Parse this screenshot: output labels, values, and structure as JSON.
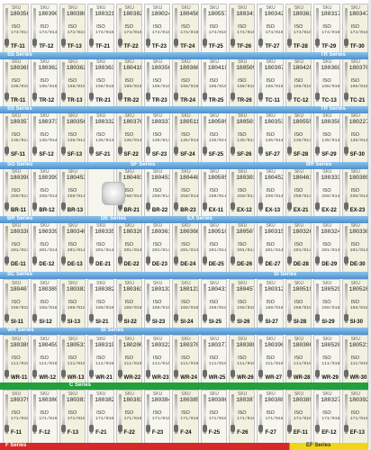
{
  "bands": [
    {
      "cards": [
        {
          "sku": "SKU",
          "code": "180356",
          "iso": "ISO",
          "isonum": "173/014",
          "tag": "TF-11"
        },
        {
          "sku": "SKU",
          "code": "180390",
          "iso": "ISO",
          "isonum": "173/014",
          "tag": "TF-12"
        },
        {
          "sku": "SKU",
          "code": "180380",
          "iso": "ISO",
          "isonum": "172/023",
          "tag": "TF-13"
        },
        {
          "sku": "SKU",
          "code": "180321",
          "iso": "ISO",
          "isonum": "174/016",
          "tag": "TF-21"
        },
        {
          "sku": "SKU",
          "code": "180382",
          "iso": "ISO",
          "isonum": "174/016",
          "tag": "TF-22"
        },
        {
          "sku": "SKU",
          "code": "180024",
          "iso": "ISO",
          "isonum": "174/016",
          "tag": "TF-23"
        },
        {
          "sku": "SKU",
          "code": "180456",
          "iso": "ISO",
          "isonum": "174/016",
          "tag": "TF-24"
        },
        {
          "sku": "SKU",
          "code": "180557",
          "iso": "ISO",
          "isonum": "174/016",
          "tag": "TF-25"
        },
        {
          "sku": "SKU",
          "code": "180341",
          "iso": "ISO",
          "isonum": "174/016",
          "tag": "TF-26"
        },
        {
          "sku": "SKU",
          "code": "180342",
          "iso": "ISO",
          "isonum": "174/016",
          "tag": "TF-27"
        },
        {
          "sku": "SKU",
          "code": "180363",
          "iso": "ISO",
          "isonum": "174/016",
          "tag": "TF-28"
        },
        {
          "sku": "SKU",
          "code": "180317",
          "iso": "ISO",
          "isonum": "174/016",
          "tag": "TF-29"
        },
        {
          "sku": "SKU",
          "code": "180347",
          "iso": "ISO",
          "isonum": "174/016",
          "tag": "TF-30"
        }
      ]
    },
    {
      "cards": [
        {
          "sku": "SKU",
          "code": "180365",
          "iso": "ISO",
          "isonum": "198/016",
          "tag": "TR-11"
        },
        {
          "sku": "SKU",
          "code": "180362",
          "iso": "ISO",
          "isonum": "198/016",
          "tag": "TR-12"
        },
        {
          "sku": "SKU",
          "code": "180362",
          "iso": "ISO",
          "isonum": "198/016",
          "tag": "TR-13"
        },
        {
          "sku": "SKU",
          "code": "180363",
          "iso": "ISO",
          "isonum": "198/016",
          "tag": "TR-21"
        },
        {
          "sku": "SKU",
          "code": "180418",
          "iso": "ISO",
          "isonum": "198/016",
          "tag": "TR-22"
        },
        {
          "sku": "SKU",
          "code": "180356",
          "iso": "ISO",
          "isonum": "198/016",
          "tag": "TR-23"
        },
        {
          "sku": "SKU",
          "code": "180360",
          "iso": "ISO",
          "isonum": "198/016",
          "tag": "TR-24"
        },
        {
          "sku": "SKU",
          "code": "180419",
          "iso": "ISO",
          "isonum": "198/016",
          "tag": "TR-25"
        },
        {
          "sku": "SKU",
          "code": "180509",
          "iso": "ISO",
          "isonum": "198/016",
          "tag": "TR-26"
        },
        {
          "sku": "SKU",
          "code": "180387",
          "iso": "ISO",
          "isonum": "198/016",
          "tag": "TC-11"
        },
        {
          "sku": "SKU",
          "code": "180428",
          "iso": "ISO",
          "isonum": "198/016",
          "tag": "TC-12"
        },
        {
          "sku": "SKU",
          "code": "180369",
          "iso": "ISO",
          "isonum": "198/016",
          "tag": "TC-13"
        },
        {
          "sku": "SKU",
          "code": "180370",
          "iso": "ISO",
          "isonum": "198/016",
          "tag": "TC-21"
        }
      ]
    },
    {
      "cards": [
        {
          "sku": "SKU",
          "code": "180357",
          "iso": "ISO",
          "isonum": "135/014",
          "tag": "SF-11"
        },
        {
          "sku": "SKU",
          "code": "180373",
          "iso": "ISO",
          "isonum": "135/014",
          "tag": "SF-12"
        },
        {
          "sku": "SKU",
          "code": "180356",
          "iso": "ISO",
          "isonum": "135/014",
          "tag": "SF-13"
        },
        {
          "sku": "SKU",
          "code": "180332",
          "iso": "ISO",
          "isonum": "135/014",
          "tag": "SF-21"
        },
        {
          "sku": "SKU",
          "code": "180376",
          "iso": "ISO",
          "isonum": "135/014",
          "tag": "SF-22"
        },
        {
          "sku": "SKU",
          "code": "180337",
          "iso": "ISO",
          "isonum": "135/014",
          "tag": "SF-23"
        },
        {
          "sku": "SKU",
          "code": "180511",
          "iso": "ISO",
          "isonum": "135/014",
          "tag": "SF-24"
        },
        {
          "sku": "SKU",
          "code": "180509",
          "iso": "ISO",
          "isonum": "135/014",
          "tag": "SF-25"
        },
        {
          "sku": "SKU",
          "code": "180501",
          "iso": "ISO",
          "isonum": "135/014",
          "tag": "SF-26"
        },
        {
          "sku": "SKU",
          "code": "180353",
          "iso": "ISO",
          "isonum": "135/014",
          "tag": "SF-27"
        },
        {
          "sku": "SKU",
          "code": "180555",
          "iso": "ISO",
          "isonum": "135/014",
          "tag": "SF-28"
        },
        {
          "sku": "SKU",
          "code": "180358",
          "iso": "ISO",
          "isonum": "135/014",
          "tag": "SF-29"
        },
        {
          "sku": "SKU",
          "code": "180227",
          "iso": "ISO",
          "isonum": "135/014",
          "tag": "SF-30"
        }
      ]
    },
    {
      "cards": [
        {
          "sku": "SKU",
          "code": "180398",
          "iso": "ISO",
          "isonum": "250/014",
          "tag": "BR-11"
        },
        {
          "sku": "SKU",
          "code": "180399",
          "iso": "ISO",
          "isonum": "250/014",
          "tag": "BR-12"
        },
        {
          "sku": "SKU",
          "code": "180453",
          "iso": "ISO",
          "isonum": "250/014",
          "tag": "BR-13"
        },
        {
          "sku": "",
          "code": "",
          "iso": "",
          "isonum": "",
          "tag": ""
        },
        {
          "sku": "SKU",
          "code": "180401",
          "iso": "ISO",
          "isonum": "250/014",
          "tag": "BR-21"
        },
        {
          "sku": "SKU",
          "code": "180453",
          "iso": "ISO",
          "isonum": "250/014",
          "tag": "BR-22"
        },
        {
          "sku": "SKU",
          "code": "180448",
          "iso": "ISO",
          "isonum": "250/014",
          "tag": "BR-23"
        },
        {
          "sku": "SKU",
          "code": "180505",
          "iso": "ISO",
          "isonum": "250/014",
          "tag": "EX-11"
        },
        {
          "sku": "SKU",
          "code": "180303",
          "iso": "ISO",
          "isonum": "250/014",
          "tag": "EX-12"
        },
        {
          "sku": "SKU",
          "code": "180452",
          "iso": "ISO",
          "isonum": "250/014",
          "tag": "EX-13"
        },
        {
          "sku": "SKU",
          "code": "180461",
          "iso": "ISO",
          "isonum": "250/014",
          "tag": "EX-21"
        },
        {
          "sku": "SKU",
          "code": "180333",
          "iso": "ISO",
          "isonum": "250/014",
          "tag": "EX-22"
        },
        {
          "sku": "SKU",
          "code": "180389",
          "iso": "ISO",
          "isonum": "250/014",
          "tag": "EX-23"
        }
      ]
    },
    {
      "cards": [
        {
          "sku": "SKU",
          "code": "180338",
          "iso": "ISO",
          "isonum": "201/014",
          "tag": "DE-11"
        },
        {
          "sku": "SKU",
          "code": "180339",
          "iso": "ISO",
          "isonum": "201/014",
          "tag": "DE-12"
        },
        {
          "sku": "SKU",
          "code": "180340",
          "iso": "ISO",
          "isonum": "201/014",
          "tag": "DE-13"
        },
        {
          "sku": "SKU",
          "code": "180335",
          "iso": "ISO",
          "isonum": "201/014",
          "tag": "DE-21"
        },
        {
          "sku": "SKU",
          "code": "180326",
          "iso": "ISO",
          "isonum": "201/014",
          "tag": "DE-22"
        },
        {
          "sku": "SKU",
          "code": "180361",
          "iso": "ISO",
          "isonum": "201/014",
          "tag": "DE-23"
        },
        {
          "sku": "SKU",
          "code": "180366",
          "iso": "ISO",
          "isonum": "201/014",
          "tag": "DE-24"
        },
        {
          "sku": "SKU",
          "code": "180510",
          "iso": "ISO",
          "isonum": "201/014",
          "tag": "DE-25"
        },
        {
          "sku": "SKU",
          "code": "180507",
          "iso": "ISO",
          "isonum": "201/014",
          "tag": "DE-26"
        },
        {
          "sku": "SKU",
          "code": "180315",
          "iso": "ISO",
          "isonum": "201/014",
          "tag": "DE-27"
        },
        {
          "sku": "SKU",
          "code": "180326",
          "iso": "ISO",
          "isonum": "201/014",
          "tag": "DE-28"
        },
        {
          "sku": "SKU",
          "code": "180324",
          "iso": "ISO",
          "isonum": "201/014",
          "tag": "DE-29"
        },
        {
          "sku": "SKU",
          "code": "180330",
          "iso": "ISO",
          "isonum": "201/014",
          "tag": "DE-30"
        }
      ]
    },
    {
      "cards": [
        {
          "sku": "SKU",
          "code": "180407",
          "iso": "ISO",
          "isonum": "168/018",
          "tag": "SI-11"
        },
        {
          "sku": "SKU",
          "code": "180385",
          "iso": "ISO",
          "isonum": "168/018",
          "tag": "SI-12"
        },
        {
          "sku": "SKU",
          "code": "180383",
          "iso": "ISO",
          "isonum": "168/018",
          "tag": "SI-13"
        },
        {
          "sku": "SKU",
          "code": "180382",
          "iso": "ISO",
          "isonum": "168/018",
          "tag": "SI-21"
        },
        {
          "sku": "SKU",
          "code": "180363",
          "iso": "ISO",
          "isonum": "168/018",
          "tag": "SI-22"
        },
        {
          "sku": "SKU",
          "code": "180133",
          "iso": "ISO",
          "isonum": "168/018",
          "tag": "SI-23"
        },
        {
          "sku": "SKU",
          "code": "180123",
          "iso": "ISO",
          "isonum": "168/018",
          "tag": "SI-24"
        },
        {
          "sku": "SKU",
          "code": "180431",
          "iso": "ISO",
          "isonum": "168/018",
          "tag": "SI-25"
        },
        {
          "sku": "SKU",
          "code": "180457",
          "iso": "ISO",
          "isonum": "168/018",
          "tag": "SI-26"
        },
        {
          "sku": "SKU",
          "code": "180312",
          "iso": "ISO",
          "isonum": "168/018",
          "tag": "SI-27"
        },
        {
          "sku": "SKU",
          "code": "180519",
          "iso": "ISO",
          "isonum": "168/018",
          "tag": "SI-28"
        },
        {
          "sku": "SKU",
          "code": "180529",
          "iso": "ISO",
          "isonum": "168/018",
          "tag": "SI-29"
        },
        {
          "sku": "SKU",
          "code": "180528",
          "iso": "ISO",
          "isonum": "168/018",
          "tag": "SI-30"
        }
      ]
    },
    {
      "cards": [
        {
          "sku": "SKU",
          "code": "180389",
          "iso": "ISO",
          "isonum": "111/016",
          "tag": "WR-11"
        },
        {
          "sku": "SKU",
          "code": "180459",
          "iso": "ISO",
          "isonum": "111/016",
          "tag": "WR-12"
        },
        {
          "sku": "SKU",
          "code": "180531",
          "iso": "ISO",
          "isonum": "111/016",
          "tag": "WR-13"
        },
        {
          "sku": "SKU",
          "code": "180319",
          "iso": "ISO",
          "isonum": "111/016",
          "tag": "WR-21"
        },
        {
          "sku": "SKU",
          "code": "180200",
          "iso": "ISO",
          "isonum": "111/016",
          "tag": "WR-22"
        },
        {
          "sku": "SKU",
          "code": "180322",
          "iso": "ISO",
          "isonum": "111/016",
          "tag": "WR-23"
        },
        {
          "sku": "SKU",
          "code": "180376",
          "iso": "ISO",
          "isonum": "111/016",
          "tag": "WR-24"
        },
        {
          "sku": "SKU",
          "code": "180377",
          "iso": "ISO",
          "isonum": "111/016",
          "tag": "WR-25"
        },
        {
          "sku": "SKU",
          "code": "180388",
          "iso": "ISO",
          "isonum": "111/016",
          "tag": "WR-26"
        },
        {
          "sku": "SKU",
          "code": "180396",
          "iso": "ISO",
          "isonum": "111/016",
          "tag": "WR-27"
        },
        {
          "sku": "SKU",
          "code": "180306",
          "iso": "ISO",
          "isonum": "111/016",
          "tag": "WR-28"
        },
        {
          "sku": "SKU",
          "code": "180520",
          "iso": "ISO",
          "isonum": "111/016",
          "tag": "WR-29"
        },
        {
          "sku": "SKU",
          "code": "180521",
          "iso": "ISO",
          "isonum": "111/016",
          "tag": "WR-30"
        }
      ]
    },
    {
      "cards": [
        {
          "sku": "SKU",
          "code": "180379",
          "iso": "ISO",
          "isonum": "171/016",
          "tag": "F-11"
        },
        {
          "sku": "SKU",
          "code": "180380",
          "iso": "ISO",
          "isonum": "171/016",
          "tag": "F-12"
        },
        {
          "sku": "SKU",
          "code": "180381",
          "iso": "ISO",
          "isonum": "171/016",
          "tag": "F-13"
        },
        {
          "sku": "SKU",
          "code": "180382",
          "iso": "ISO",
          "isonum": "171/016",
          "tag": "F-21"
        },
        {
          "sku": "SKU",
          "code": "180383",
          "iso": "ISO",
          "isonum": "171/016",
          "tag": "F-22"
        },
        {
          "sku": "SKU",
          "code": "180384",
          "iso": "ISO",
          "isonum": "171/016",
          "tag": "F-23"
        },
        {
          "sku": "SKU",
          "code": "180385",
          "iso": "ISO",
          "isonum": "171/016",
          "tag": "F-24"
        },
        {
          "sku": "SKU",
          "code": "180386",
          "iso": "ISO",
          "isonum": "171/016",
          "tag": "F-25"
        },
        {
          "sku": "SKU",
          "code": "180387",
          "iso": "ISO",
          "isonum": "171/016",
          "tag": "F-26"
        },
        {
          "sku": "SKU",
          "code": "180388",
          "iso": "ISO",
          "isonum": "171/016",
          "tag": "F-27"
        },
        {
          "sku": "SKU",
          "code": "180389",
          "iso": "ISO",
          "isonum": "171/016",
          "tag": "EF-11"
        },
        {
          "sku": "SKU",
          "code": "180327",
          "iso": "ISO",
          "isonum": "171/016",
          "tag": "EF-12"
        },
        {
          "sku": "SKU",
          "code": "180392",
          "iso": "ISO",
          "isonum": "171/016",
          "tag": "EF-13"
        }
      ]
    }
  ],
  "series_bars": [
    {
      "kind": "blue",
      "labels": [
        {
          "text": "SS Series"
        },
        {
          "text": "TR Series"
        }
      ]
    },
    {
      "kind": "blue",
      "labels": [
        {
          "text": "SS Series"
        },
        {
          "text": "TR Series"
        }
      ]
    },
    {
      "kind": "blue",
      "labels": [
        {
          "text": "SO Series"
        },
        {
          "text": "SF Series"
        },
        {
          "text": "BR Series"
        }
      ]
    },
    {
      "kind": "blue",
      "labels": [
        {
          "text": "BR Series"
        },
        {
          "text": "DE Series"
        },
        {
          "text": "EX Series"
        }
      ]
    },
    {
      "kind": "blue",
      "labels": [
        {
          "text": "SC Series"
        },
        {
          "text": "SI Series"
        }
      ]
    },
    {
      "kind": "blue",
      "labels": [
        {
          "text": "WR Series"
        },
        {
          "text": "SI Series"
        }
      ]
    },
    {
      "kind": "green",
      "labels": [
        {
          "text": "C Series"
        }
      ]
    },
    {
      "kind": "footer",
      "labels": [
        {
          "text": "F Series"
        },
        {
          "text": "EF Series"
        }
      ]
    }
  ]
}
